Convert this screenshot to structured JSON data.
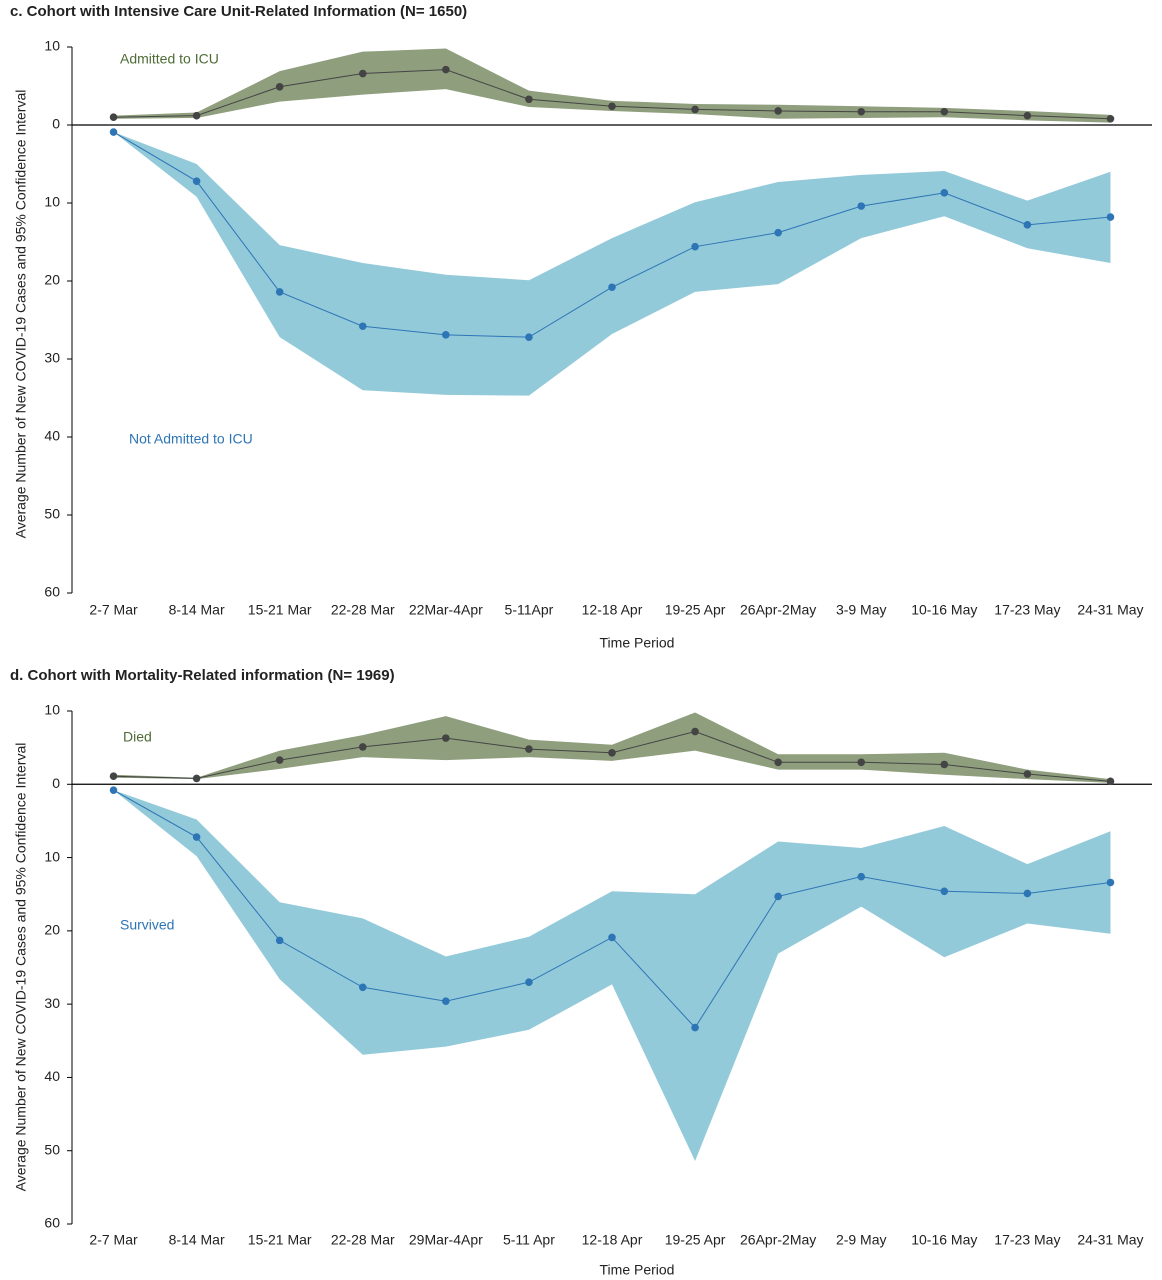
{
  "chart_data": [
    {
      "type": "line",
      "title": "c. Cohort with Intensive Care Unit-Related Information  (N= 1650)",
      "xlabel": "Time Period",
      "ylabel": "Average Number of New COVID-19 Cases and 95% Confidence Interval",
      "categories": [
        "2-7 Mar",
        "8-14 Mar",
        "15-21 Mar",
        "22-28 Mar",
        "22Mar-4Apr",
        "5-11Apr",
        "12-18 Apr",
        "19-25 Apr",
        "26Apr-2May",
        "3-9 May",
        "10-16 May",
        "17-23 May",
        "24-31 May"
      ],
      "ylim": [
        -60,
        10
      ],
      "yticks": [
        10,
        0,
        {
          "value": -10,
          "label": "10"
        },
        {
          "value": -20,
          "label": "20"
        },
        {
          "value": -30,
          "label": "30"
        },
        {
          "value": -40,
          "label": "40"
        },
        {
          "value": -50,
          "label": "50"
        },
        {
          "value": -60,
          "label": "60"
        }
      ],
      "grid": false,
      "series": [
        {
          "name": "Admitted to ICU",
          "color": "#444444",
          "band_color": "#8f9e7d",
          "label_color": "#4e6b35",
          "values": [
            1.0,
            1.2,
            4.9,
            6.6,
            7.1,
            3.3,
            2.4,
            2.0,
            1.8,
            1.7,
            1.7,
            1.2,
            0.8
          ],
          "upper": [
            1.2,
            1.6,
            6.9,
            9.4,
            9.8,
            4.4,
            3.1,
            2.7,
            2.6,
            2.4,
            2.2,
            1.8,
            1.3
          ],
          "lower": [
            0.8,
            0.9,
            3.0,
            3.9,
            4.6,
            2.3,
            1.8,
            1.4,
            0.8,
            0.9,
            1.0,
            0.6,
            0.3
          ]
        },
        {
          "name": "Not Admitted to ICU",
          "color": "#2e75b6",
          "band_color": "#93cad9",
          "label_color": "#2e75b6",
          "values": [
            -0.9,
            -7.2,
            -21.4,
            -25.8,
            -26.9,
            -27.2,
            -20.8,
            -15.6,
            -13.8,
            -10.4,
            -8.7,
            -12.8,
            -11.8
          ],
          "upper": [
            -0.9,
            -5.0,
            -15.4,
            -17.7,
            -19.2,
            -19.9,
            -14.5,
            -9.9,
            -7.3,
            -6.4,
            -5.9,
            -9.7,
            -6.0
          ],
          "lower": [
            -0.9,
            -9.2,
            -27.2,
            -34.0,
            -34.6,
            -34.7,
            -26.8,
            -21.4,
            -20.4,
            -14.5,
            -11.7,
            -15.8,
            -17.7
          ]
        }
      ]
    },
    {
      "type": "line",
      "title": "d. Cohort with Mortality-Related information  (N= 1969)",
      "xlabel": "Time Period",
      "ylabel": "Average Number of New COVID-19 Cases and 95% Confidence Interval",
      "categories": [
        "2-7 Mar",
        "8-14 Mar",
        "15-21 Mar",
        "22-28 Mar",
        "29Mar-4Apr",
        "5-11 Apr",
        "12-18 Apr",
        "19-25 Apr",
        "26Apr-2May",
        "2-9 May",
        "10-16 May",
        "17-23 May",
        "24-31 May"
      ],
      "ylim": [
        -60,
        10
      ],
      "yticks": [
        10,
        0,
        {
          "value": -10,
          "label": "10"
        },
        {
          "value": -20,
          "label": "20"
        },
        {
          "value": -30,
          "label": "30"
        },
        {
          "value": -40,
          "label": "40"
        },
        {
          "value": -50,
          "label": "50"
        },
        {
          "value": -60,
          "label": "60"
        }
      ],
      "grid": false,
      "series": [
        {
          "name": "Died",
          "color": "#444444",
          "band_color": "#8f9e7d",
          "label_color": "#4e6b35",
          "values": [
            1.1,
            0.8,
            3.3,
            5.1,
            6.3,
            4.8,
            4.3,
            7.2,
            3.0,
            3.0,
            2.7,
            1.4,
            0.4
          ],
          "upper": [
            1.3,
            0.9,
            4.6,
            6.7,
            9.3,
            6.1,
            5.4,
            9.8,
            4.1,
            4.1,
            4.3,
            2.0,
            0.7
          ],
          "lower": [
            0.9,
            0.7,
            2.1,
            3.7,
            3.3,
            3.7,
            3.2,
            4.6,
            2.0,
            2.0,
            1.3,
            0.7,
            0.2
          ]
        },
        {
          "name": "Survived",
          "color": "#2e75b6",
          "band_color": "#93cad9",
          "label_color": "#2e75b6",
          "values": [
            -0.8,
            -7.2,
            -21.3,
            -27.7,
            -29.6,
            -27.0,
            -20.9,
            -33.2,
            -15.3,
            -12.6,
            -14.6,
            -14.9,
            -13.4
          ],
          "upper": [
            -0.8,
            -4.8,
            -16.1,
            -18.3,
            -23.5,
            -20.8,
            -14.6,
            -15.0,
            -7.8,
            -8.7,
            -5.7,
            -10.9,
            -6.4
          ],
          "lower": [
            -0.8,
            -9.8,
            -26.6,
            -36.9,
            -35.8,
            -33.5,
            -27.3,
            -51.4,
            -23.1,
            -16.7,
            -23.6,
            -19.0,
            -20.4
          ]
        }
      ]
    }
  ]
}
